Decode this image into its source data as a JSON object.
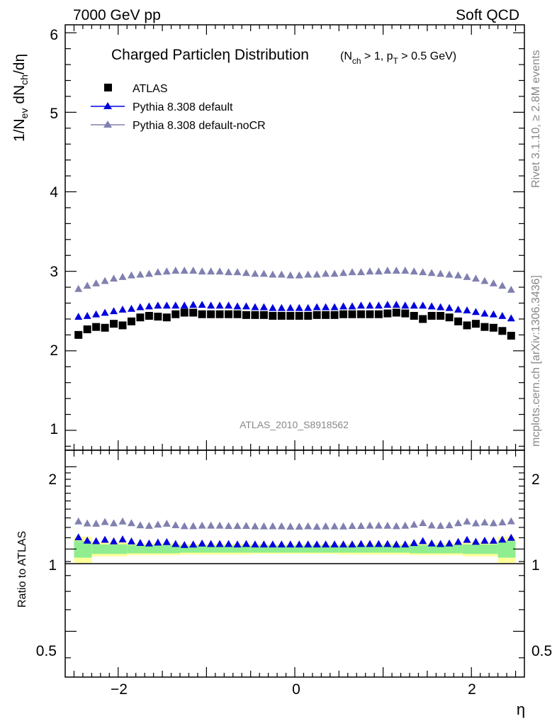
{
  "header": {
    "left": "7000 GeV pp",
    "right": "Soft QCD"
  },
  "side": {
    "rivet": "Rivet 3.1.10, ≥ 2.8M events",
    "mcplots": "mcplots.cern.ch [arXiv:1306.3436]"
  },
  "chart_data": {
    "type": "scatter",
    "title": "Charged Particleη Distribution",
    "subtitle": "(N_ch > 1, p_T > 0.5 GeV)",
    "analysis_label": "ATLAS_2010_S8918562",
    "xlabel": "η",
    "ylabel": "1/N_ev dN_ch/dη",
    "ratio_ylabel": "Ratio to ATLAS",
    "xlim": [
      -2.6,
      2.6
    ],
    "ylim": [
      0.75,
      6.1
    ],
    "ratio_ylim": [
      0.34,
      2.3
    ],
    "ratio_scale": "log",
    "x_ticks": [
      "−2",
      "0",
      "2"
    ],
    "y_ticks": [
      "1",
      "2",
      "3",
      "4",
      "5",
      "6"
    ],
    "ratio_ticks": [
      "0.5",
      "1",
      "2"
    ],
    "legend_position": "top-left",
    "x": [
      -2.45,
      -2.35,
      -2.25,
      -2.15,
      -2.05,
      -1.95,
      -1.85,
      -1.75,
      -1.65,
      -1.55,
      -1.45,
      -1.35,
      -1.25,
      -1.15,
      -1.05,
      -0.95,
      -0.85,
      -0.75,
      -0.65,
      -0.55,
      -0.45,
      -0.35,
      -0.25,
      -0.15,
      -0.05,
      0.05,
      0.15,
      0.25,
      0.35,
      0.45,
      0.55,
      0.65,
      0.75,
      0.85,
      0.95,
      1.05,
      1.15,
      1.25,
      1.35,
      1.45,
      1.55,
      1.65,
      1.75,
      1.85,
      1.95,
      2.05,
      2.15,
      2.25,
      2.35,
      2.45
    ],
    "series": [
      {
        "name": "ATLAS",
        "color": "#000000",
        "marker": "square",
        "values": [
          2.2,
          2.27,
          2.3,
          2.29,
          2.34,
          2.32,
          2.37,
          2.42,
          2.44,
          2.43,
          2.42,
          2.46,
          2.48,
          2.48,
          2.46,
          2.46,
          2.46,
          2.46,
          2.46,
          2.45,
          2.45,
          2.45,
          2.44,
          2.44,
          2.44,
          2.44,
          2.44,
          2.45,
          2.45,
          2.45,
          2.46,
          2.46,
          2.46,
          2.46,
          2.46,
          2.47,
          2.48,
          2.47,
          2.44,
          2.4,
          2.44,
          2.44,
          2.42,
          2.37,
          2.32,
          2.34,
          2.3,
          2.29,
          2.25,
          2.19
        ]
      },
      {
        "name": "Pythia 8.308 default",
        "color": "#0000dd",
        "marker": "triangle",
        "values": [
          2.43,
          2.44,
          2.46,
          2.48,
          2.5,
          2.52,
          2.53,
          2.55,
          2.56,
          2.57,
          2.57,
          2.57,
          2.57,
          2.58,
          2.58,
          2.57,
          2.57,
          2.57,
          2.56,
          2.56,
          2.55,
          2.55,
          2.54,
          2.54,
          2.54,
          2.54,
          2.54,
          2.55,
          2.55,
          2.55,
          2.56,
          2.56,
          2.57,
          2.57,
          2.57,
          2.58,
          2.58,
          2.57,
          2.57,
          2.57,
          2.56,
          2.55,
          2.54,
          2.52,
          2.51,
          2.49,
          2.47,
          2.46,
          2.44,
          2.41
        ]
      },
      {
        "name": "Pythia 8.308 default-noCR",
        "color": "#8080b0",
        "marker": "triangle",
        "values": [
          2.78,
          2.82,
          2.85,
          2.88,
          2.91,
          2.93,
          2.95,
          2.96,
          2.97,
          2.99,
          3.0,
          3.01,
          3.01,
          3.01,
          3.0,
          3.0,
          3.0,
          2.99,
          2.99,
          2.98,
          2.97,
          2.97,
          2.96,
          2.96,
          2.95,
          2.95,
          2.96,
          2.96,
          2.97,
          2.97,
          2.98,
          2.99,
          2.99,
          3.0,
          3.0,
          3.01,
          3.01,
          3.01,
          3.0,
          2.99,
          2.98,
          2.97,
          2.96,
          2.95,
          2.93,
          2.91,
          2.88,
          2.85,
          2.82,
          2.77
        ]
      }
    ],
    "uncertainty_bands": {
      "edges": [
        -2.5,
        -2.3,
        -1.9,
        -1.3,
        -0.5,
        0.5,
        1.3,
        1.9,
        2.3,
        2.5
      ],
      "inner_half_width": [
        0.07,
        0.04,
        0.035,
        0.03,
        0.03,
        0.03,
        0.035,
        0.04,
        0.07
      ],
      "outer_half_width": [
        0.11,
        0.06,
        0.05,
        0.045,
        0.04,
        0.045,
        0.05,
        0.06,
        0.11
      ],
      "inner_color": "#90ee90",
      "outer_color": "#ffff99"
    }
  }
}
